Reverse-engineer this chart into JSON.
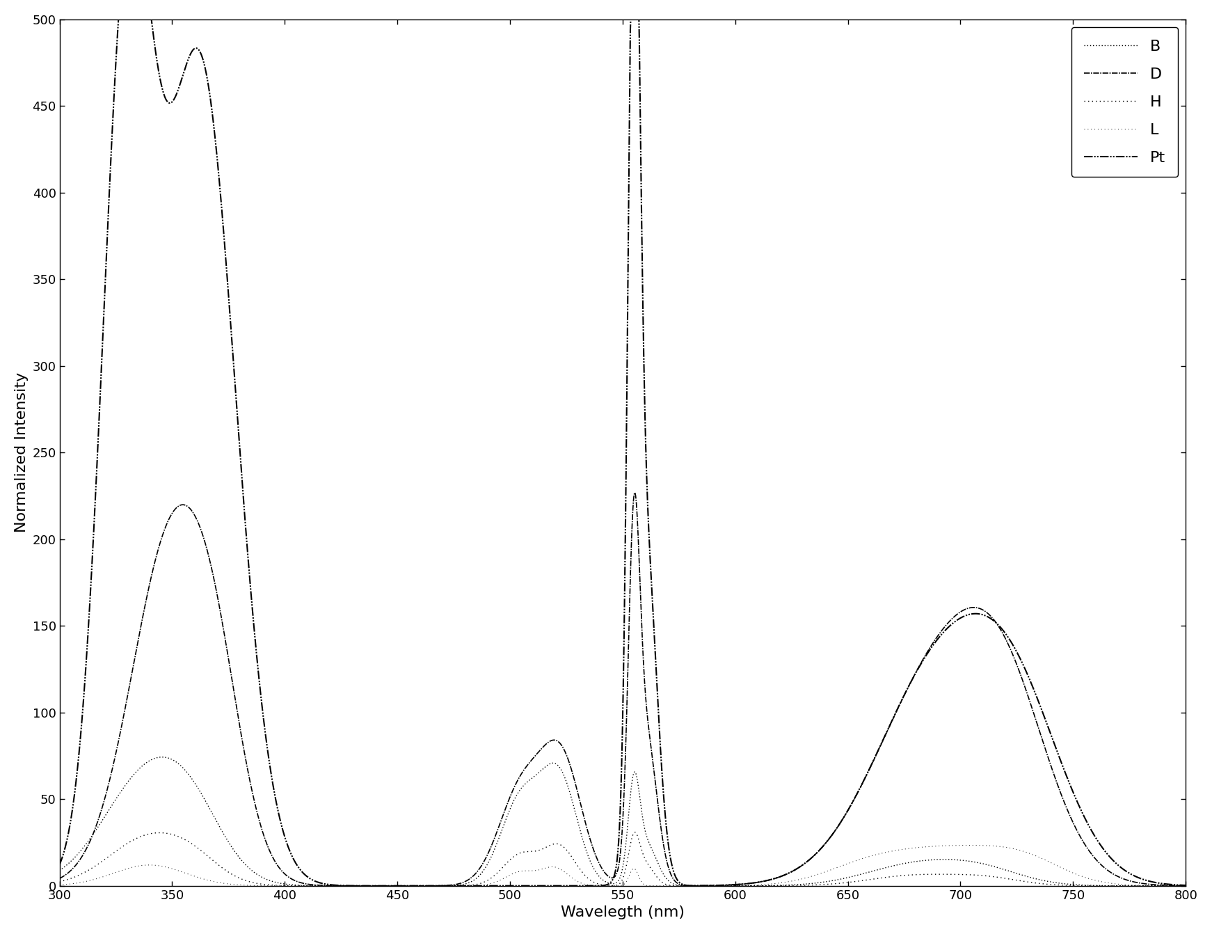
{
  "title": "",
  "xlabel": "Wavelegth (nm)",
  "ylabel": "Normalized Intensity",
  "xlim": [
    300,
    800
  ],
  "ylim": [
    0,
    500
  ],
  "xticks": [
    300,
    350,
    400,
    450,
    500,
    550,
    600,
    650,
    700,
    750,
    800
  ],
  "yticks": [
    0,
    50,
    100,
    150,
    200,
    250,
    300,
    350,
    400,
    450,
    500
  ],
  "background_color": "#ffffff",
  "legend_labels": [
    "B",
    "D",
    "H",
    "L",
    "Pt"
  ],
  "figsize": [
    17.42,
    13.42
  ],
  "dpi": 100
}
